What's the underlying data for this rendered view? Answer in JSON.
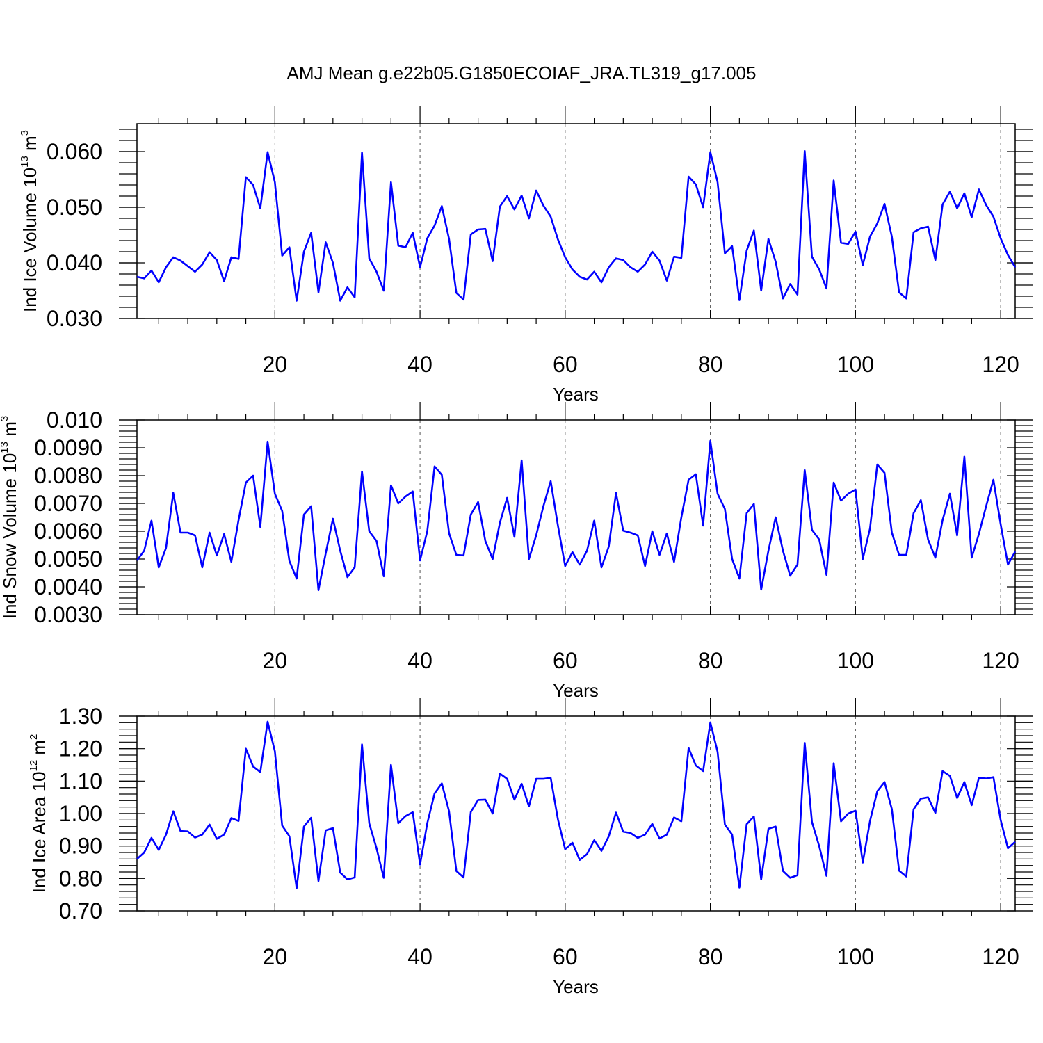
{
  "figure": {
    "title": "AMJ Mean g.e22b05.G1850ECOIAF_JRA.TL319_g17.005"
  },
  "chart_data": [
    {
      "type": "line",
      "panel": "ice-volume",
      "ylabel_main": "Ind Ice Volume 10",
      "ylabel_exp": "13",
      "ylabel_unit": " m",
      "ylabel_unit_exp": "3",
      "xlabel": "Years",
      "xlim": [
        1,
        122
      ],
      "ylim": [
        0.03,
        0.065
      ],
      "yticks": [
        "0.030",
        "0.040",
        "0.050",
        "0.060"
      ],
      "xticks": [
        "20",
        "40",
        "60",
        "80",
        "100",
        "120"
      ],
      "grid": "dashed vertical at x ticks",
      "series": [
        {
          "color": "#0000ff",
          "values": [
            0.0375,
            0.0372,
            0.0386,
            0.0365,
            0.0392,
            0.041,
            0.0404,
            0.0394,
            0.0384,
            0.0397,
            0.0419,
            0.0405,
            0.0367,
            0.041,
            0.0407,
            0.0554,
            0.054,
            0.0498,
            0.0599,
            0.0545,
            0.0413,
            0.0428,
            0.0332,
            0.042,
            0.0454,
            0.0347,
            0.0437,
            0.04,
            0.0332,
            0.0356,
            0.0338,
            0.0598,
            0.0408,
            0.0384,
            0.035,
            0.0545,
            0.0431,
            0.0428,
            0.0454,
            0.0392,
            0.0444,
            0.0467,
            0.0502,
            0.0443,
            0.0346,
            0.0334,
            0.0451,
            0.046,
            0.0461,
            0.0403,
            0.0501,
            0.052,
            0.0496,
            0.0521,
            0.048,
            0.053,
            0.0503,
            0.0483,
            0.0442,
            0.041,
            0.0388,
            0.0375,
            0.037,
            0.0384,
            0.0365,
            0.0392,
            0.0408,
            0.0405,
            0.0392,
            0.0384,
            0.0397,
            0.042,
            0.0404,
            0.0368,
            0.0411,
            0.0409,
            0.0555,
            0.0541,
            0.05,
            0.0599,
            0.0545,
            0.0417,
            0.043,
            0.0333,
            0.0422,
            0.0458,
            0.035,
            0.0443,
            0.0402,
            0.0336,
            0.0362,
            0.0343,
            0.0601,
            0.0411,
            0.0388,
            0.0354,
            0.0548,
            0.0436,
            0.0434,
            0.0456,
            0.0396,
            0.0447,
            0.0471,
            0.0506,
            0.0447,
            0.0347,
            0.0336,
            0.0455,
            0.0462,
            0.0465,
            0.0405,
            0.0505,
            0.0528,
            0.0498,
            0.0525,
            0.0482,
            0.0532,
            0.0504,
            0.0483,
            0.0444,
            0.0414,
            0.0392
          ]
        }
      ]
    },
    {
      "type": "line",
      "panel": "snow-volume",
      "ylabel_main": "Ind Snow Volume 10",
      "ylabel_exp": "13",
      "ylabel_unit": " m",
      "ylabel_unit_exp": "3",
      "xlabel": "Years",
      "xlim": [
        1,
        122
      ],
      "ylim": [
        0.003,
        0.01
      ],
      "yticks": [
        "0.0030",
        "0.0040",
        "0.0050",
        "0.0060",
        "0.0070",
        "0.0080",
        "0.0090",
        "0.010"
      ],
      "xticks": [
        "20",
        "40",
        "60",
        "80",
        "100",
        "120"
      ],
      "grid": "dashed vertical at x ticks",
      "series": [
        {
          "color": "#0000ff",
          "values": [
            0.00495,
            0.0053,
            0.00638,
            0.0047,
            0.0054,
            0.00738,
            0.00595,
            0.00595,
            0.00585,
            0.0047,
            0.00595,
            0.00513,
            0.0059,
            0.0049,
            0.0064,
            0.00775,
            0.008,
            0.00615,
            0.00922,
            0.00735,
            0.00673,
            0.00493,
            0.0043,
            0.0066,
            0.0069,
            0.00388,
            0.0052,
            0.00645,
            0.0053,
            0.00435,
            0.0047,
            0.00815,
            0.006,
            0.00565,
            0.00438,
            0.00765,
            0.007,
            0.00725,
            0.00743,
            0.00495,
            0.006,
            0.00833,
            0.00803,
            0.00593,
            0.00515,
            0.00513,
            0.0066,
            0.00705,
            0.00565,
            0.005,
            0.0063,
            0.0072,
            0.0058,
            0.00855,
            0.005,
            0.00585,
            0.0069,
            0.0078,
            0.0062,
            0.00475,
            0.00525,
            0.0048,
            0.0053,
            0.00638,
            0.0047,
            0.00545,
            0.00738,
            0.00602,
            0.00595,
            0.00585,
            0.00475,
            0.006,
            0.00515,
            0.00592,
            0.0049,
            0.0065,
            0.00785,
            0.00805,
            0.0062,
            0.00925,
            0.00735,
            0.0068,
            0.005,
            0.0043,
            0.00665,
            0.00698,
            0.0039,
            0.0053,
            0.0065,
            0.0053,
            0.0044,
            0.0048,
            0.0082,
            0.00605,
            0.0057,
            0.00443,
            0.00775,
            0.0071,
            0.00735,
            0.0075,
            0.005,
            0.0061,
            0.0084,
            0.0081,
            0.00595,
            0.00515,
            0.00515,
            0.00665,
            0.00712,
            0.0057,
            0.00505,
            0.0064,
            0.00735,
            0.00585,
            0.00868,
            0.00505,
            0.0059,
            0.0069,
            0.00785,
            0.00625,
            0.0048,
            0.00527
          ]
        }
      ]
    },
    {
      "type": "line",
      "panel": "ice-area",
      "ylabel_main": "Ind Ice Area 10",
      "ylabel_exp": "12",
      "ylabel_unit": " m",
      "ylabel_unit_exp": "2",
      "xlabel": "Years",
      "xlim": [
        1,
        122
      ],
      "ylim": [
        0.7,
        1.3
      ],
      "yticks": [
        "0.70",
        "0.80",
        "0.90",
        "1.00",
        "1.10",
        "1.20",
        "1.30"
      ],
      "xticks": [
        "20",
        "40",
        "60",
        "80",
        "100",
        "120"
      ],
      "grid": "dashed vertical at x ticks",
      "series": [
        {
          "color": "#0000ff",
          "values": [
            0.86,
            0.88,
            0.925,
            0.888,
            0.935,
            1.007,
            0.946,
            0.945,
            0.926,
            0.935,
            0.966,
            0.922,
            0.935,
            0.986,
            0.977,
            1.2,
            1.145,
            1.128,
            1.283,
            1.192,
            0.963,
            0.93,
            0.77,
            0.96,
            0.987,
            0.792,
            0.948,
            0.955,
            0.818,
            0.797,
            0.803,
            1.213,
            0.97,
            0.893,
            0.802,
            1.15,
            0.97,
            0.992,
            1.004,
            0.843,
            0.97,
            1.062,
            1.093,
            1.007,
            0.823,
            0.803,
            1.005,
            1.042,
            1.043,
            1.0,
            1.123,
            1.107,
            1.043,
            1.092,
            1.022,
            1.107,
            1.107,
            1.11,
            0.982,
            0.89,
            0.91,
            0.857,
            0.875,
            0.918,
            0.885,
            0.93,
            1.003,
            0.944,
            0.94,
            0.925,
            0.935,
            0.968,
            0.923,
            0.935,
            0.988,
            0.976,
            1.202,
            1.148,
            1.131,
            1.281,
            1.19,
            0.966,
            0.935,
            0.772,
            0.967,
            0.991,
            0.797,
            0.953,
            0.96,
            0.823,
            0.802,
            0.81,
            1.218,
            0.974,
            0.899,
            0.808,
            1.155,
            0.976,
            1.0,
            1.009,
            0.849,
            0.977,
            1.069,
            1.097,
            1.014,
            0.824,
            0.806,
            1.013,
            1.046,
            1.05,
            1.002,
            1.131,
            1.116,
            1.048,
            1.097,
            1.026,
            1.11,
            1.108,
            1.112,
            0.98,
            0.893,
            0.913
          ]
        }
      ]
    }
  ]
}
